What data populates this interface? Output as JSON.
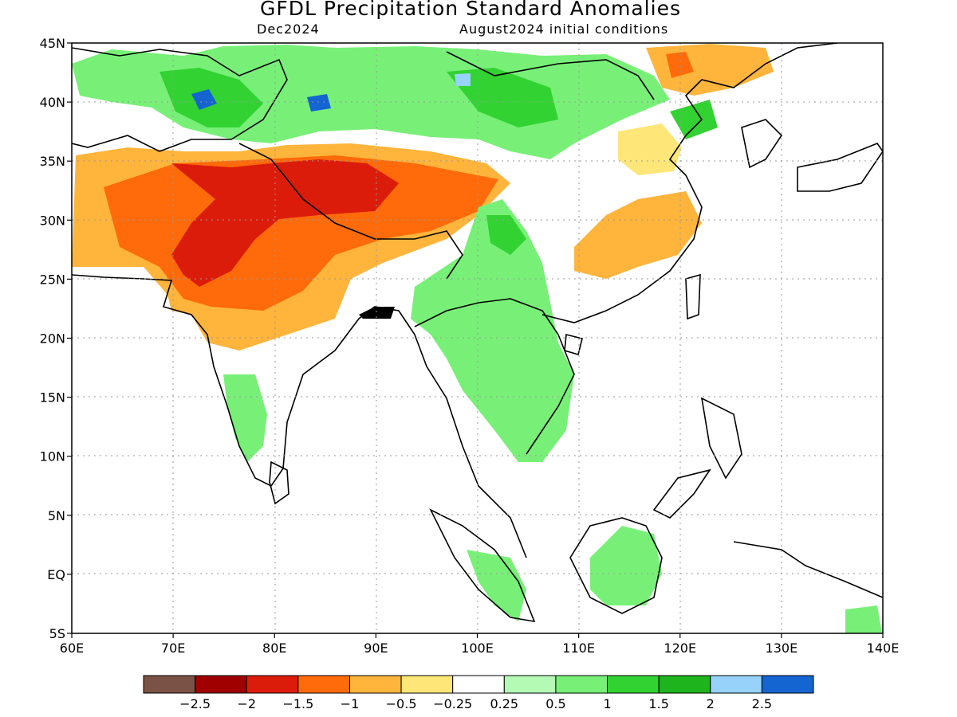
{
  "title": "GFDL Precipitation Standard Anomalies",
  "subtitle_left": "Dec2024",
  "subtitle_right": "August2024 initial conditions",
  "map": {
    "lon_range": [
      60,
      140
    ],
    "lat_range": [
      -5,
      45
    ],
    "lon_ticks": [
      "60E",
      "70E",
      "80E",
      "90E",
      "100E",
      "110E",
      "120E",
      "130E",
      "140E"
    ],
    "lat_ticks": [
      "45N",
      "40N",
      "35N",
      "30N",
      "25N",
      "20N",
      "15N",
      "10N",
      "5N",
      "EQ",
      "5S"
    ],
    "gridlines": "dotted"
  },
  "colorbar": {
    "colors": [
      "#7b5246",
      "#a00000",
      "#dc1c0a",
      "#ff6a0a",
      "#ffb43c",
      "#ffe678",
      "#ffffff",
      "#b4fab4",
      "#78f078",
      "#32d232",
      "#1eb41e",
      "#96d2fa",
      "#1464d2"
    ],
    "labels": [
      "−2.5",
      "−2",
      "−1.5",
      "−1",
      "−0.5",
      "−0.25",
      "0.25",
      "0.5",
      "1",
      "1.5",
      "2",
      "2.5"
    ]
  }
}
